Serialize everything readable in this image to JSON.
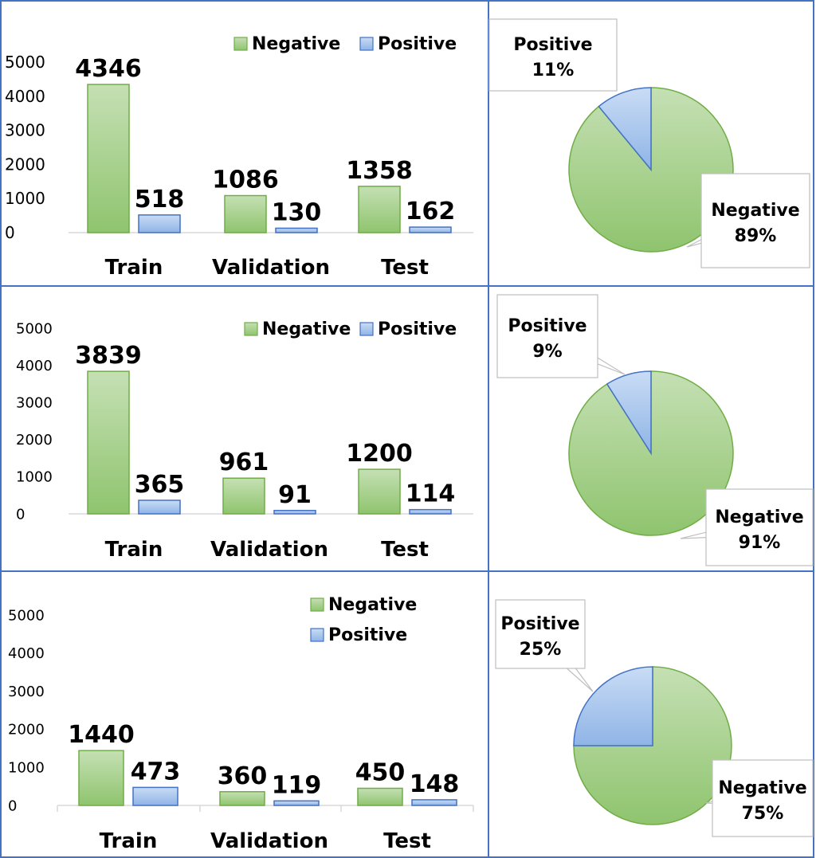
{
  "colors": {
    "negative_fill": "#a9d18e",
    "negative_stroke": "#70ad47",
    "positive_fill": "#a7c5ee",
    "positive_stroke": "#4472c4",
    "panel_border": "#4472c4"
  },
  "chart_data": [
    {
      "type": "bar",
      "categories": [
        "Train",
        "Validation",
        "Test"
      ],
      "series": [
        {
          "name": "Negative",
          "values": [
            4346,
            1086,
            1358
          ]
        },
        {
          "name": "Positive",
          "values": [
            518,
            130,
            162
          ]
        }
      ],
      "yticks": [
        "0",
        "1000",
        "2000",
        "3000",
        "4000",
        "5000"
      ],
      "ylim": [
        0,
        5000
      ],
      "legend_position": "top-right",
      "legend": [
        "Negative",
        "Positive"
      ]
    },
    {
      "type": "pie",
      "slices": [
        {
          "name": "Positive",
          "value": 11,
          "label_name": "Positive",
          "label_pct": "11%"
        },
        {
          "name": "Negative",
          "value": 89,
          "label_name": "Negative",
          "label_pct": "89%"
        }
      ]
    },
    {
      "type": "bar",
      "categories": [
        "Train",
        "Validation",
        "Test"
      ],
      "series": [
        {
          "name": "Negative",
          "values": [
            3839,
            961,
            1200
          ]
        },
        {
          "name": "Positive",
          "values": [
            365,
            91,
            114
          ]
        }
      ],
      "yticks": [
        "0",
        "1000",
        "2000",
        "3000",
        "4000",
        "5000"
      ],
      "ylim": [
        0,
        5000
      ],
      "legend_position": "top-right",
      "legend": [
        "Negative",
        "Positive"
      ]
    },
    {
      "type": "pie",
      "slices": [
        {
          "name": "Positive",
          "value": 9,
          "label_name": "Positive",
          "label_pct": "9%"
        },
        {
          "name": "Negative",
          "value": 91,
          "label_name": "Negative",
          "label_pct": "91%"
        }
      ]
    },
    {
      "type": "bar",
      "categories": [
        "Train",
        "Validation",
        "Test"
      ],
      "series": [
        {
          "name": "Negative",
          "values": [
            1440,
            360,
            450
          ]
        },
        {
          "name": "Positive",
          "values": [
            473,
            119,
            148
          ]
        }
      ],
      "yticks": [
        "0",
        "1000",
        "2000",
        "3000",
        "4000",
        "5000"
      ],
      "ylim": [
        0,
        5000
      ],
      "legend_position": "top-right (stacked)",
      "legend": [
        "Negative",
        "Positive"
      ]
    },
    {
      "type": "pie",
      "slices": [
        {
          "name": "Positive",
          "value": 25,
          "label_name": "Positive",
          "label_pct": "25%"
        },
        {
          "name": "Negative",
          "value": 75,
          "label_name": "Negative",
          "label_pct": "75%"
        }
      ]
    }
  ]
}
